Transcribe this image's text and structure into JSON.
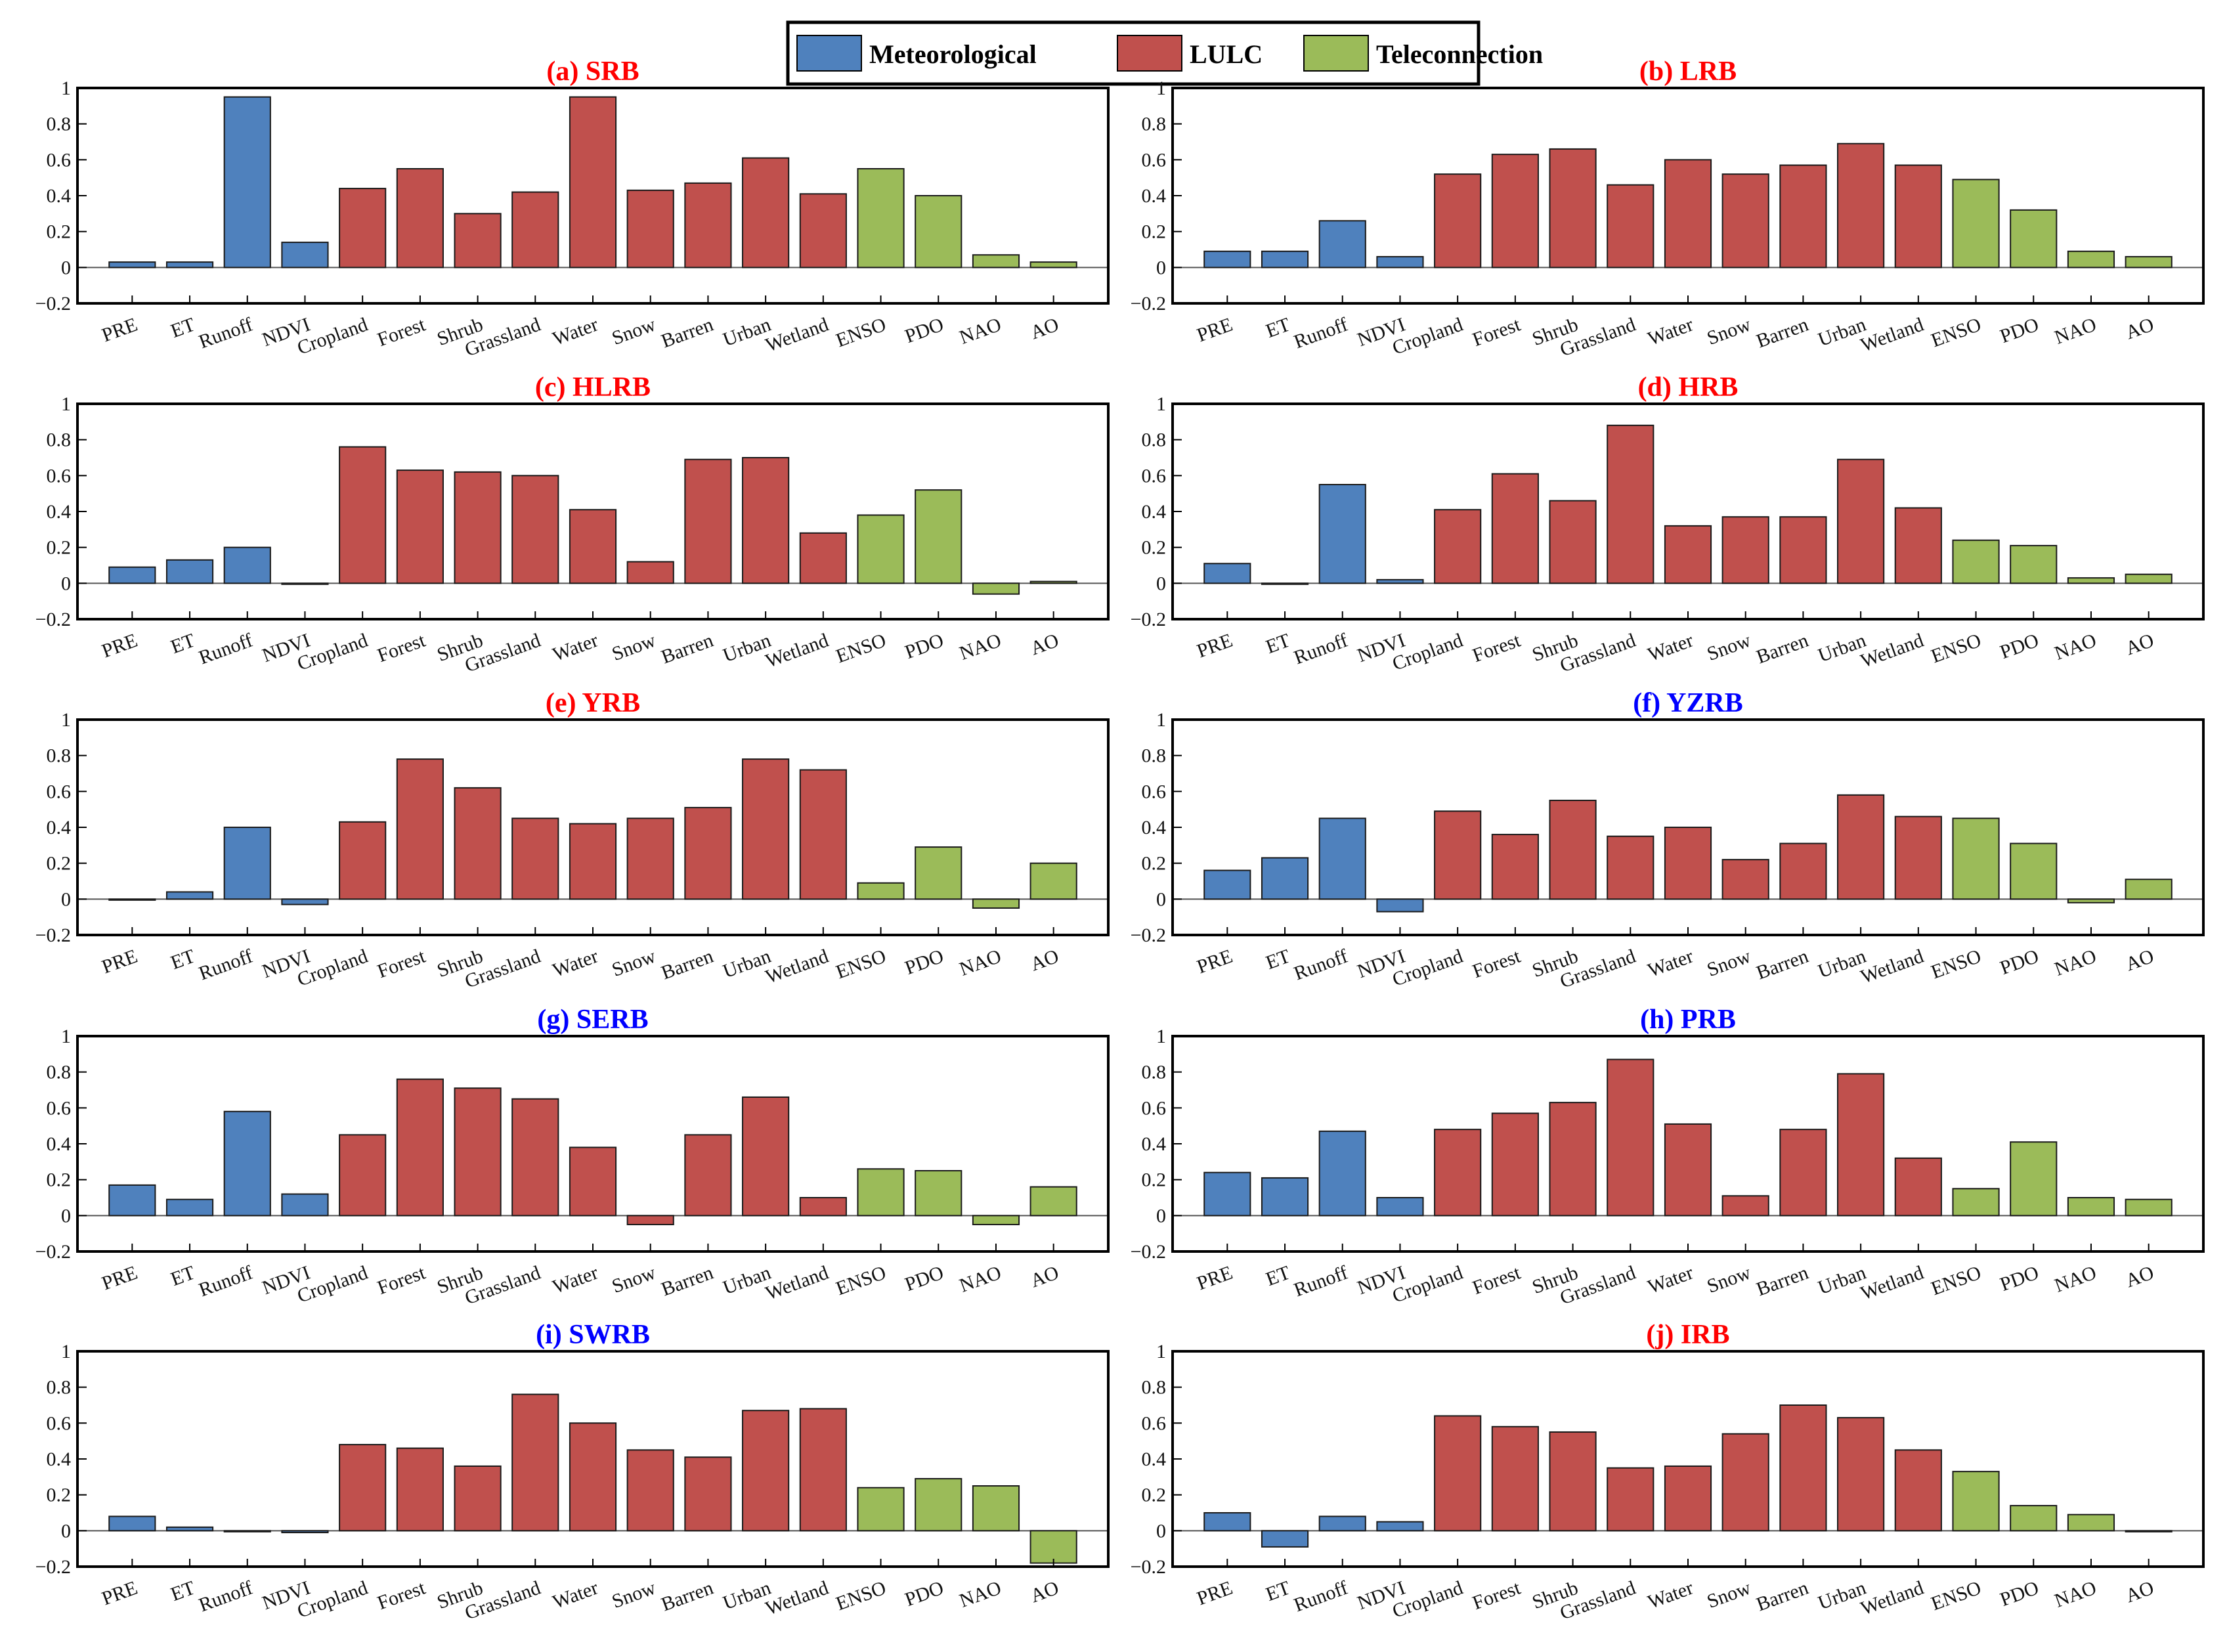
{
  "colors": {
    "meteorological": "#4f81bd",
    "lulc": "#c0504d",
    "teleconnection": "#9bbb59",
    "title_red": "#ff0000",
    "title_blue": "#0000ff"
  },
  "legend": {
    "items": [
      {
        "label": "Meteorological",
        "group": "meteorological"
      },
      {
        "label": "LULC",
        "group": "lulc"
      },
      {
        "label": "Teleconnection",
        "group": "teleconnection"
      }
    ],
    "placement": "top-center"
  },
  "chart_data": {
    "type": "bar",
    "categories": [
      "PRE",
      "ET",
      "Runoff",
      "NDVI",
      "Cropland",
      "Forest",
      "Shrub",
      "Grassland",
      "Water",
      "Snow",
      "Barren",
      "Urban",
      "Wetland",
      "ENSO",
      "PDO",
      "NAO",
      "AO"
    ],
    "category_groups": [
      "meteorological",
      "meteorological",
      "meteorological",
      "meteorological",
      "lulc",
      "lulc",
      "lulc",
      "lulc",
      "lulc",
      "lulc",
      "lulc",
      "lulc",
      "lulc",
      "teleconnection",
      "teleconnection",
      "teleconnection",
      "teleconnection"
    ],
    "ylim": [
      -0.2,
      1.0
    ],
    "yticks": [
      "1",
      "0.8",
      "0.6",
      "0.4",
      "0.2",
      "0",
      "−0.2"
    ],
    "grid": false,
    "panels": [
      {
        "title": "(a) SRB",
        "title_color": "red",
        "values": [
          0.03,
          0.03,
          0.95,
          0.14,
          0.44,
          0.55,
          0.3,
          0.42,
          0.95,
          0.43,
          0.47,
          0.61,
          0.41,
          0.55,
          0.4,
          0.07,
          0.03
        ]
      },
      {
        "title": "(b) LRB",
        "title_color": "red",
        "values": [
          0.09,
          0.09,
          0.26,
          0.06,
          0.52,
          0.63,
          0.66,
          0.46,
          0.6,
          0.52,
          0.57,
          0.69,
          0.57,
          0.49,
          0.32,
          0.09,
          0.06
        ]
      },
      {
        "title": "(c) HLRB",
        "title_color": "red",
        "values": [
          0.09,
          0.13,
          0.2,
          0.0,
          0.76,
          0.63,
          0.62,
          0.6,
          0.41,
          0.12,
          0.69,
          0.7,
          0.28,
          0.38,
          0.52,
          -0.06,
          0.01
        ]
      },
      {
        "title": "(d) HRB",
        "title_color": "red",
        "values": [
          0.11,
          0.0,
          0.55,
          0.02,
          0.41,
          0.61,
          0.46,
          0.88,
          0.32,
          0.37,
          0.37,
          0.69,
          0.42,
          0.24,
          0.21,
          0.03,
          0.05
        ]
      },
      {
        "title": "(e) YRB",
        "title_color": "red",
        "values": [
          0.0,
          0.04,
          0.4,
          -0.03,
          0.43,
          0.78,
          0.62,
          0.45,
          0.42,
          0.45,
          0.51,
          0.78,
          0.72,
          0.09,
          0.29,
          -0.05,
          0.2
        ]
      },
      {
        "title": "(f) YZRB",
        "title_color": "blue",
        "values": [
          0.16,
          0.23,
          0.45,
          -0.07,
          0.49,
          0.36,
          0.55,
          0.35,
          0.4,
          0.22,
          0.31,
          0.58,
          0.46,
          0.45,
          0.31,
          -0.02,
          0.11
        ]
      },
      {
        "title": "(g) SERB",
        "title_color": "blue",
        "values": [
          0.17,
          0.09,
          0.58,
          0.12,
          0.45,
          0.76,
          0.71,
          0.65,
          0.38,
          -0.05,
          0.45,
          0.66,
          0.1,
          0.26,
          0.25,
          -0.05,
          0.16
        ]
      },
      {
        "title": "(h) PRB",
        "title_color": "blue",
        "values": [
          0.24,
          0.21,
          0.47,
          0.1,
          0.48,
          0.57,
          0.63,
          0.87,
          0.51,
          0.11,
          0.48,
          0.79,
          0.32,
          0.15,
          0.41,
          0.1,
          0.09
        ]
      },
      {
        "title": "(i) SWRB",
        "title_color": "blue",
        "values": [
          0.08,
          0.02,
          0.0,
          -0.01,
          0.48,
          0.46,
          0.36,
          0.76,
          0.6,
          0.45,
          0.41,
          0.67,
          0.68,
          0.24,
          0.29,
          0.25,
          -0.18
        ]
      },
      {
        "title": "(j) IRB",
        "title_color": "red",
        "values": [
          0.1,
          -0.09,
          0.08,
          0.05,
          0.64,
          0.58,
          0.55,
          0.35,
          0.36,
          0.54,
          0.7,
          0.63,
          0.45,
          0.33,
          0.14,
          0.09,
          0.0
        ]
      }
    ]
  }
}
